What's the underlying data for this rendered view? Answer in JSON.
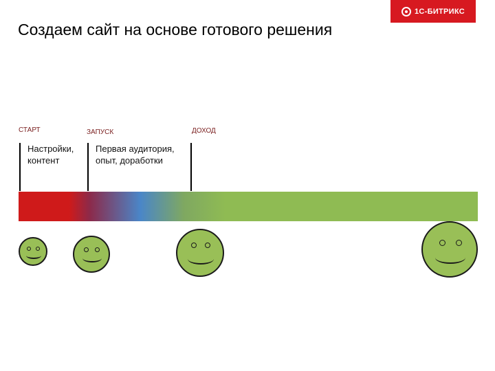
{
  "brand": {
    "logo_text": "1С-БИТРИКС"
  },
  "slide": {
    "title": "Создаем сайт на основе готового решения"
  },
  "stages": [
    {
      "label": "СТАРТ",
      "note": "Настройки, контент"
    },
    {
      "label": "ЗАПУСК",
      "note": "Первая аудитория, опыт, доработки"
    },
    {
      "label": "ДОХОД",
      "note": ""
    }
  ],
  "colors": {
    "start": "#cf1a1a",
    "launch": "#4a86c8",
    "income": "#8fbb53",
    "smiley": "#99bf57"
  },
  "icons": [
    "smiley-icon",
    "smiley-icon",
    "smiley-icon",
    "smiley-icon"
  ]
}
